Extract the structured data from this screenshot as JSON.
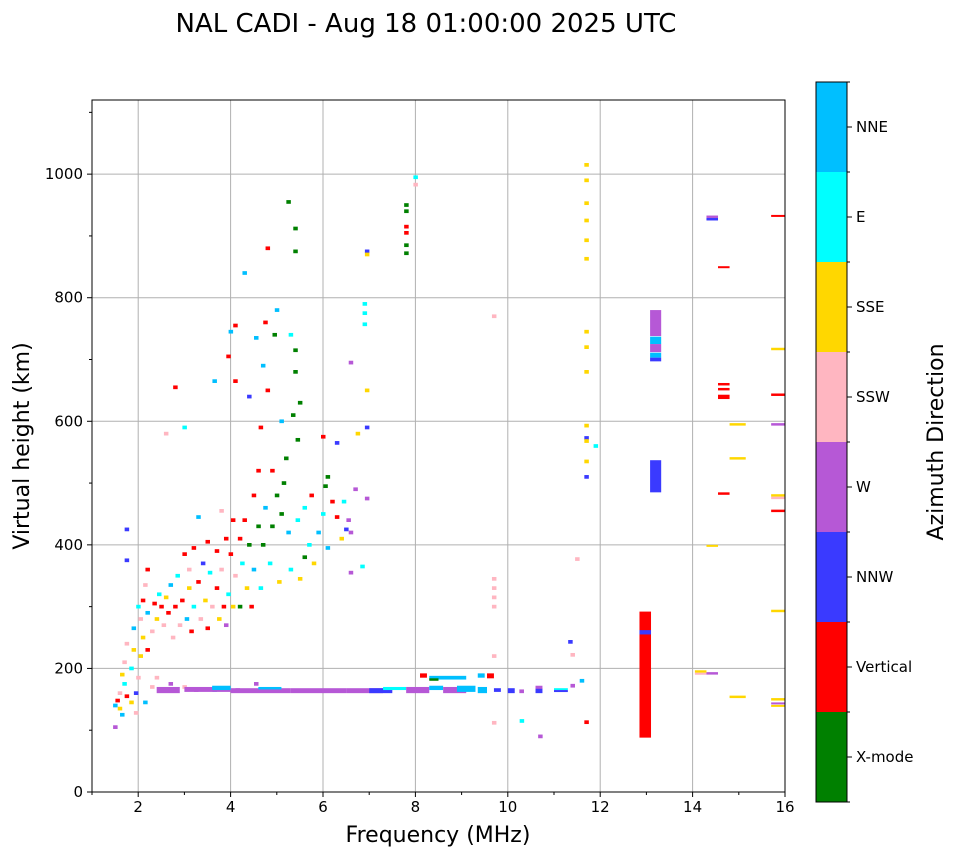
{
  "chart_data": {
    "type": "scatter",
    "title": "NAL CADI - Aug 18 01:00:00 2025 UTC",
    "xlabel": "Frequency (MHz)",
    "ylabel": "Virtual height (km)",
    "xlim": [
      1,
      16
    ],
    "ylim": [
      0,
      1120
    ],
    "xticks": [
      2,
      4,
      6,
      8,
      10,
      12,
      14,
      16
    ],
    "yticks": [
      0,
      200,
      400,
      600,
      800,
      1000
    ],
    "grid": true,
    "colorbar": {
      "label": "Azimuth Direction",
      "categories": [
        "X-mode",
        "Vertical",
        "NNW",
        "W",
        "SSW",
        "SSE",
        "E",
        "NNE"
      ],
      "colors": [
        "#008000",
        "#ff0000",
        "#3a3aff",
        "#b658d6",
        "#ffb6c1",
        "#ffd700",
        "#00ffff",
        "#00bfff"
      ]
    },
    "point_format": "[frequency_MHz, height_km, direction_index]",
    "points": [
      [
        1.5,
        105,
        3
      ],
      [
        1.5,
        140,
        7
      ],
      [
        1.55,
        148,
        1
      ],
      [
        1.6,
        135,
        5
      ],
      [
        1.6,
        160,
        4
      ],
      [
        1.65,
        190,
        5
      ],
      [
        1.65,
        125,
        7
      ],
      [
        1.7,
        175,
        6
      ],
      [
        1.7,
        210,
        4
      ],
      [
        1.75,
        240,
        4
      ],
      [
        1.75,
        155,
        1
      ],
      [
        1.75,
        425,
        2
      ],
      [
        1.75,
        375,
        2
      ],
      [
        1.85,
        145,
        5
      ],
      [
        1.85,
        200,
        6
      ],
      [
        1.9,
        230,
        5
      ],
      [
        1.9,
        265,
        7
      ],
      [
        1.95,
        128,
        4
      ],
      [
        1.95,
        160,
        2
      ],
      [
        2.0,
        185,
        4
      ],
      [
        2.0,
        300,
        6
      ],
      [
        2.05,
        220,
        5
      ],
      [
        2.05,
        280,
        4
      ],
      [
        2.1,
        310,
        1
      ],
      [
        2.1,
        250,
        5
      ],
      [
        2.15,
        145,
        7
      ],
      [
        2.15,
        335,
        4
      ],
      [
        2.2,
        230,
        1
      ],
      [
        2.2,
        290,
        7
      ],
      [
        2.2,
        360,
        1
      ],
      [
        2.3,
        170,
        4
      ],
      [
        2.3,
        260,
        4
      ],
      [
        2.35,
        305,
        1
      ],
      [
        2.4,
        185,
        4
      ],
      [
        2.4,
        280,
        5
      ],
      [
        2.45,
        320,
        6
      ],
      [
        2.5,
        165,
        4
      ],
      [
        2.5,
        300,
        1
      ],
      [
        2.55,
        270,
        4
      ],
      [
        2.6,
        315,
        5
      ],
      [
        2.6,
        580,
        4
      ],
      [
        2.65,
        290,
        1
      ],
      [
        2.7,
        175,
        3
      ],
      [
        2.7,
        335,
        7
      ],
      [
        2.75,
        250,
        4
      ],
      [
        2.8,
        300,
        1
      ],
      [
        2.8,
        655,
        1
      ],
      [
        2.85,
        350,
        6
      ],
      [
        2.9,
        270,
        4
      ],
      [
        2.95,
        310,
        1
      ],
      [
        3.0,
        170,
        4
      ],
      [
        3.0,
        385,
        1
      ],
      [
        3.0,
        590,
        6
      ],
      [
        3.05,
        280,
        7
      ],
      [
        3.1,
        330,
        5
      ],
      [
        3.1,
        360,
        4
      ],
      [
        3.15,
        260,
        1
      ],
      [
        3.2,
        300,
        6
      ],
      [
        3.2,
        395,
        1
      ],
      [
        3.25,
        165,
        3
      ],
      [
        3.3,
        340,
        1
      ],
      [
        3.3,
        445,
        7
      ],
      [
        3.35,
        280,
        4
      ],
      [
        3.4,
        370,
        2
      ],
      [
        3.45,
        310,
        5
      ],
      [
        3.5,
        265,
        1
      ],
      [
        3.5,
        405,
        1
      ],
      [
        3.55,
        355,
        6
      ],
      [
        3.6,
        300,
        4
      ],
      [
        3.65,
        165,
        7
      ],
      [
        3.65,
        665,
        7
      ],
      [
        3.7,
        330,
        1
      ],
      [
        3.7,
        390,
        1
      ],
      [
        3.75,
        280,
        5
      ],
      [
        3.8,
        360,
        4
      ],
      [
        3.8,
        455,
        4
      ],
      [
        3.85,
        300,
        1
      ],
      [
        3.9,
        410,
        1
      ],
      [
        3.9,
        270,
        3
      ],
      [
        3.95,
        320,
        6
      ],
      [
        3.95,
        705,
        1
      ],
      [
        4.0,
        385,
        1
      ],
      [
        4.0,
        745,
        7
      ],
      [
        4.05,
        300,
        5
      ],
      [
        4.05,
        440,
        1
      ],
      [
        4.1,
        665,
        1
      ],
      [
        4.1,
        755,
        1
      ],
      [
        4.1,
        350,
        4
      ],
      [
        4.15,
        165,
        3
      ],
      [
        4.2,
        410,
        1
      ],
      [
        4.2,
        300,
        0
      ],
      [
        4.25,
        370,
        6
      ],
      [
        4.3,
        440,
        1
      ],
      [
        4.3,
        840,
        7
      ],
      [
        4.35,
        330,
        5
      ],
      [
        4.4,
        400,
        0
      ],
      [
        4.4,
        640,
        2
      ],
      [
        4.45,
        300,
        1
      ],
      [
        4.5,
        480,
        1
      ],
      [
        4.5,
        360,
        7
      ],
      [
        4.55,
        735,
        7
      ],
      [
        4.55,
        175,
        3
      ],
      [
        4.6,
        430,
        0
      ],
      [
        4.6,
        520,
        1
      ],
      [
        4.65,
        590,
        1
      ],
      [
        4.65,
        330,
        6
      ],
      [
        4.7,
        400,
        0
      ],
      [
        4.7,
        690,
        7
      ],
      [
        4.75,
        760,
        1
      ],
      [
        4.75,
        460,
        7
      ],
      [
        4.8,
        880,
        1
      ],
      [
        4.8,
        650,
        1
      ],
      [
        4.85,
        370,
        6
      ],
      [
        4.9,
        430,
        0
      ],
      [
        4.9,
        520,
        1
      ],
      [
        4.95,
        740,
        0
      ],
      [
        5.0,
        780,
        7
      ],
      [
        5.0,
        480,
        0
      ],
      [
        5.05,
        340,
        5
      ],
      [
        5.1,
        450,
        0
      ],
      [
        5.1,
        600,
        7
      ],
      [
        5.15,
        500,
        0
      ],
      [
        5.2,
        540,
        0
      ],
      [
        5.25,
        955,
        0
      ],
      [
        5.25,
        420,
        7
      ],
      [
        5.3,
        360,
        6
      ],
      [
        5.3,
        740,
        6
      ],
      [
        5.35,
        610,
        0
      ],
      [
        5.4,
        912,
        0
      ],
      [
        5.4,
        875,
        0
      ],
      [
        5.4,
        715,
        0
      ],
      [
        5.4,
        680,
        0
      ],
      [
        5.45,
        570,
        0
      ],
      [
        5.45,
        440,
        6
      ],
      [
        5.5,
        630,
        0
      ],
      [
        5.5,
        345,
        5
      ],
      [
        5.6,
        460,
        6
      ],
      [
        5.6,
        380,
        0
      ],
      [
        5.7,
        400,
        6
      ],
      [
        5.75,
        480,
        1
      ],
      [
        5.8,
        370,
        5
      ],
      [
        5.9,
        420,
        7
      ],
      [
        6.0,
        575,
        1
      ],
      [
        6.0,
        450,
        6
      ],
      [
        6.05,
        495,
        0
      ],
      [
        6.1,
        510,
        0
      ],
      [
        6.1,
        395,
        7
      ],
      [
        6.2,
        470,
        1
      ],
      [
        6.3,
        565,
        2
      ],
      [
        6.3,
        445,
        1
      ],
      [
        6.4,
        410,
        5
      ],
      [
        6.45,
        470,
        6
      ],
      [
        6.5,
        425,
        2
      ],
      [
        6.55,
        440,
        3
      ],
      [
        6.6,
        695,
        3
      ],
      [
        6.6,
        355,
        3
      ],
      [
        6.6,
        420,
        3
      ],
      [
        6.7,
        490,
        3
      ],
      [
        6.75,
        580,
        5
      ],
      [
        6.85,
        365,
        6
      ],
      [
        6.9,
        790,
        6
      ],
      [
        6.9,
        775,
        6
      ],
      [
        6.9,
        757,
        6
      ],
      [
        6.95,
        875,
        2
      ],
      [
        6.95,
        870,
        5
      ],
      [
        6.95,
        650,
        5
      ],
      [
        6.95,
        590,
        2
      ],
      [
        6.95,
        475,
        3
      ],
      [
        7.8,
        950,
        0
      ],
      [
        7.8,
        940,
        0
      ],
      [
        7.8,
        915,
        1
      ],
      [
        7.8,
        905,
        1
      ],
      [
        7.8,
        885,
        0
      ],
      [
        7.8,
        872,
        0
      ],
      [
        8.0,
        995,
        6
      ],
      [
        8.0,
        983,
        4
      ],
      [
        9.7,
        770,
        4
      ],
      [
        9.7,
        345,
        4
      ],
      [
        9.7,
        330,
        4
      ],
      [
        9.7,
        315,
        4
      ],
      [
        9.7,
        300,
        4
      ],
      [
        9.7,
        220,
        4
      ],
      [
        9.7,
        112,
        4
      ],
      [
        10.3,
        115,
        6
      ],
      [
        10.7,
        90,
        3
      ],
      [
        11.5,
        377,
        4
      ],
      [
        11.35,
        243,
        2
      ],
      [
        11.4,
        222,
        4
      ],
      [
        11.6,
        180,
        7
      ],
      [
        11.4,
        172,
        3
      ],
      [
        11.7,
        113,
        1
      ],
      [
        11.7,
        1015,
        5
      ],
      [
        11.7,
        990,
        5
      ],
      [
        11.7,
        953,
        5
      ],
      [
        11.7,
        925,
        5
      ],
      [
        11.7,
        893,
        5
      ],
      [
        11.7,
        863,
        5
      ],
      [
        11.7,
        745,
        5
      ],
      [
        11.7,
        720,
        5
      ],
      [
        11.7,
        680,
        5
      ],
      [
        11.7,
        593,
        5
      ],
      [
        11.7,
        573,
        2
      ],
      [
        11.7,
        568,
        5
      ],
      [
        11.9,
        560,
        6
      ],
      [
        11.7,
        535,
        5
      ],
      [
        11.7,
        510,
        2
      ]
    ],
    "rect_format": "[freq_start_MHz, freq_end_MHz, height_low_km, height_high_km, direction_index]",
    "rects": [
      [
        2.4,
        2.9,
        160,
        170,
        3
      ],
      [
        3.0,
        4.0,
        162,
        170,
        3
      ],
      [
        4.0,
        5.3,
        160,
        168,
        3
      ],
      [
        5.3,
        6.5,
        160,
        168,
        3
      ],
      [
        6.5,
        7.3,
        160,
        168,
        3
      ],
      [
        3.6,
        4.0,
        165,
        172,
        7
      ],
      [
        4.6,
        5.1,
        166,
        170,
        7
      ],
      [
        7.0,
        7.5,
        160,
        168,
        2
      ],
      [
        7.3,
        7.8,
        165,
        170,
        6
      ],
      [
        7.8,
        8.3,
        160,
        170,
        3
      ],
      [
        8.3,
        8.6,
        165,
        172,
        7
      ],
      [
        8.6,
        9.1,
        160,
        170,
        3
      ],
      [
        8.9,
        9.3,
        162,
        172,
        7
      ],
      [
        8.3,
        9.1,
        182,
        188,
        7
      ],
      [
        8.1,
        8.25,
        185,
        192,
        1
      ],
      [
        8.3,
        8.5,
        180,
        184,
        0
      ],
      [
        9.35,
        9.55,
        160,
        170,
        7
      ],
      [
        9.35,
        9.5,
        185,
        192,
        7
      ],
      [
        9.55,
        9.7,
        184,
        192,
        1
      ],
      [
        9.7,
        9.85,
        162,
        168,
        2
      ],
      [
        10.0,
        10.15,
        160,
        168,
        2
      ],
      [
        10.25,
        10.35,
        160,
        166,
        3
      ],
      [
        10.6,
        10.75,
        160,
        168,
        2
      ],
      [
        10.6,
        10.75,
        167,
        172,
        3
      ],
      [
        11.0,
        11.3,
        165,
        168,
        6
      ],
      [
        11.0,
        11.3,
        162,
        165,
        2
      ],
      [
        12.85,
        13.1,
        88,
        292,
        1
      ],
      [
        12.85,
        13.1,
        255,
        262,
        2
      ],
      [
        13.08,
        13.32,
        738,
        780,
        3
      ],
      [
        13.08,
        13.32,
        725,
        737,
        7
      ],
      [
        13.08,
        13.32,
        712,
        725,
        3
      ],
      [
        13.08,
        13.32,
        703,
        711,
        7
      ],
      [
        13.08,
        13.32,
        697,
        703,
        2
      ],
      [
        13.08,
        13.32,
        485,
        537,
        2
      ],
      [
        14.3,
        14.55,
        929,
        933,
        3
      ],
      [
        14.3,
        14.55,
        925,
        929,
        2
      ],
      [
        14.55,
        14.8,
        848,
        851,
        1
      ],
      [
        14.55,
        14.8,
        658,
        662,
        1
      ],
      [
        14.55,
        14.8,
        650,
        654,
        1
      ],
      [
        14.55,
        14.8,
        636,
        643,
        1
      ],
      [
        14.55,
        14.8,
        481,
        485,
        1
      ],
      [
        14.8,
        15.15,
        593,
        597,
        5
      ],
      [
        14.8,
        15.15,
        538,
        542,
        5
      ],
      [
        14.8,
        15.15,
        152,
        156,
        5
      ],
      [
        14.05,
        14.3,
        193,
        197,
        5
      ],
      [
        14.05,
        14.3,
        190,
        193,
        4
      ],
      [
        14.3,
        14.55,
        190,
        194,
        3
      ],
      [
        14.3,
        14.55,
        397,
        400,
        5
      ],
      [
        15.7,
        16,
        932,
        934,
        1
      ],
      [
        15.7,
        16,
        715,
        719,
        5
      ],
      [
        15.7,
        16,
        641,
        645,
        1
      ],
      [
        15.7,
        16,
        593,
        597,
        3
      ],
      [
        15.7,
        16,
        478,
        482,
        5
      ],
      [
        15.7,
        16,
        474,
        478,
        4
      ],
      [
        15.7,
        16,
        453,
        457,
        1
      ],
      [
        15.7,
        16,
        291,
        295,
        5
      ],
      [
        15.7,
        16,
        148,
        152,
        5
      ],
      [
        15.7,
        16,
        142,
        145,
        3
      ],
      [
        15.7,
        16,
        138,
        141,
        5
      ]
    ]
  }
}
